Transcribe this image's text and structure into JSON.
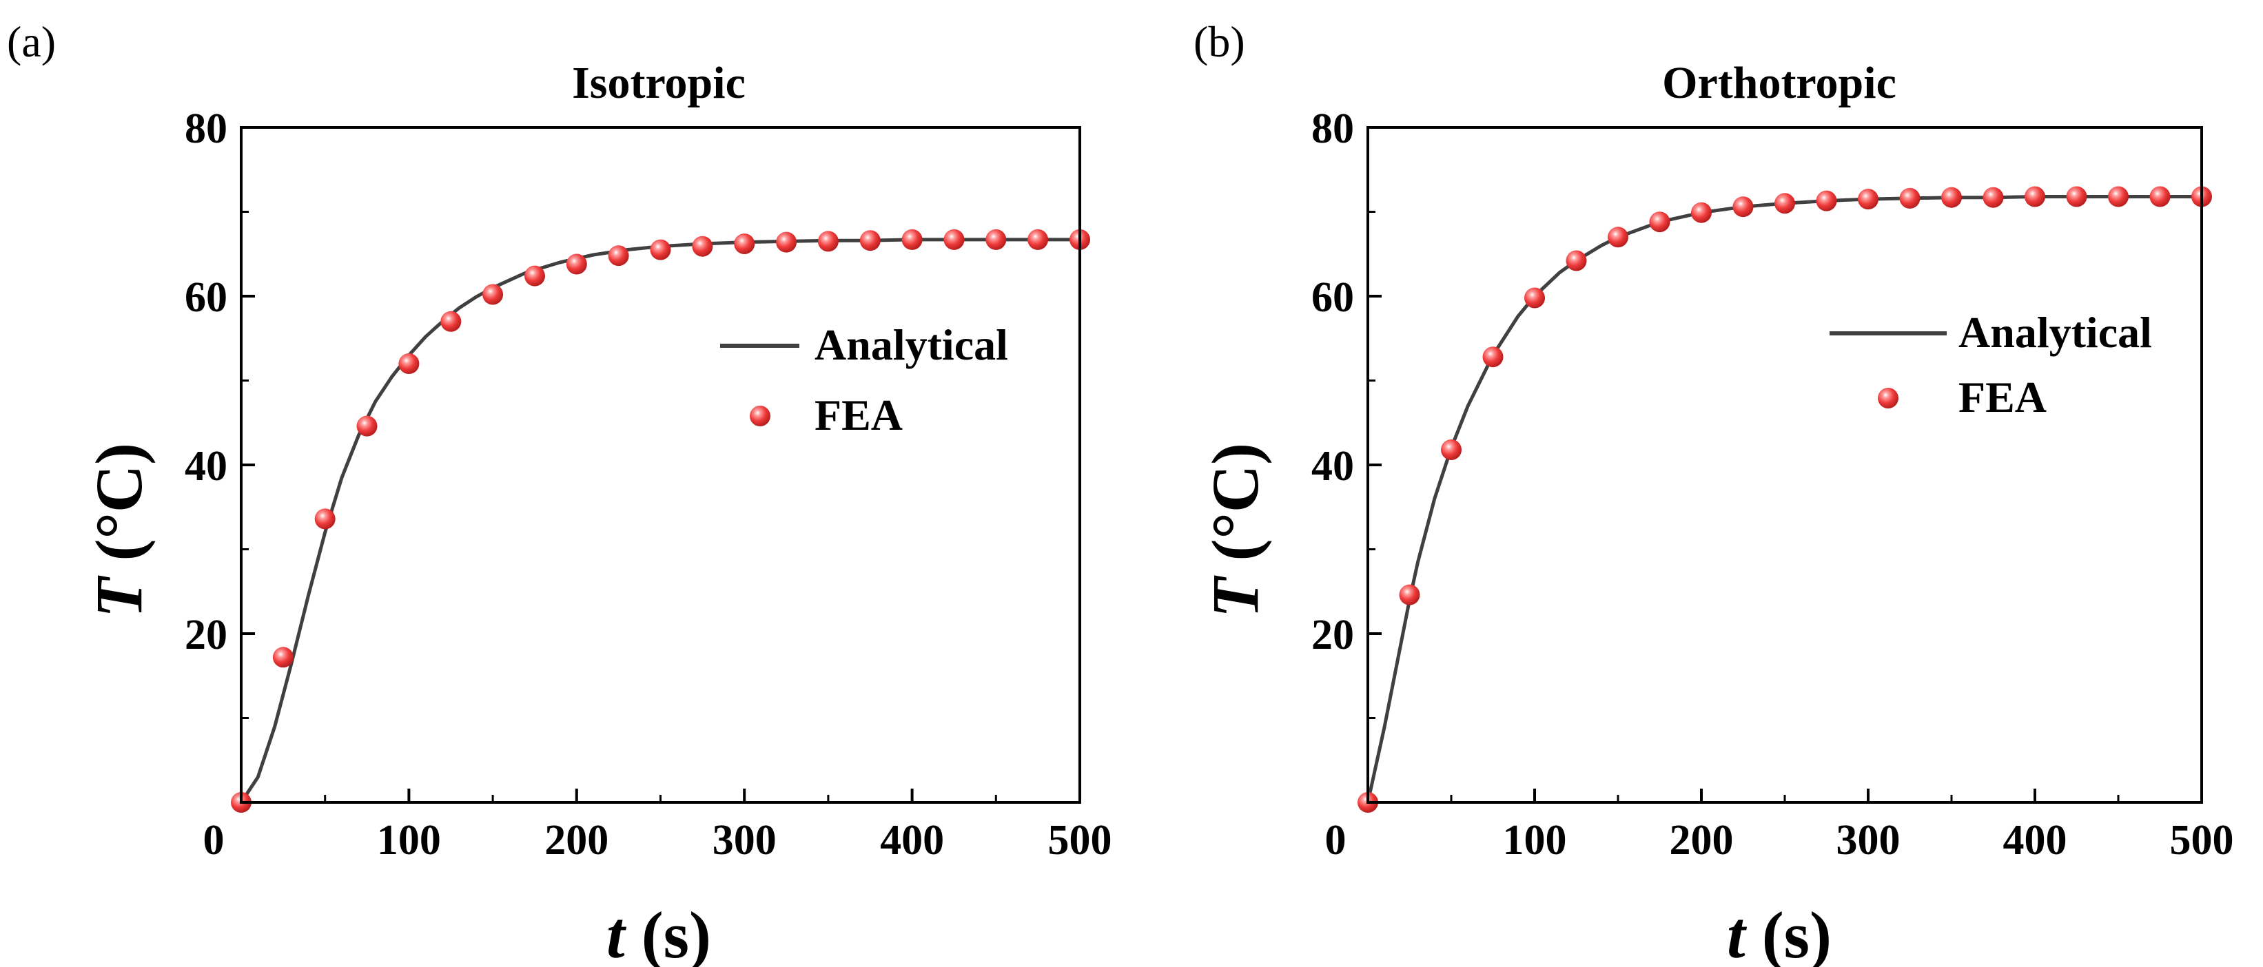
{
  "figure": {
    "panels": [
      {
        "panel_label": "(a)",
        "title": "Isotropic",
        "xlabel_var": "t",
        "xlabel_unit": " (s)",
        "ylabel_var": "T",
        "ylabel_unit": " (°C)",
        "origin_label": "0",
        "legend": {
          "line": "Analytical",
          "marker": "FEA"
        }
      },
      {
        "panel_label": "(b)",
        "title": "Orthotropic",
        "xlabel_var": "t",
        "xlabel_unit": " (s)",
        "ylabel_var": "T",
        "ylabel_unit": " (°C)",
        "origin_label": "0",
        "legend": {
          "line": "Analytical",
          "marker": "FEA"
        }
      }
    ]
  },
  "chart_data": [
    {
      "type": "line",
      "title": "Isotropic",
      "xlabel": "t (s)",
      "ylabel": "T (°C)",
      "xlim": [
        0,
        500
      ],
      "ylim": [
        0,
        80
      ],
      "xticks": [
        0,
        100,
        200,
        300,
        400,
        500
      ],
      "yticks": [
        20,
        40,
        60,
        80
      ],
      "legend_position": "right",
      "series": [
        {
          "name": "Analytical",
          "style": "line",
          "color": "#404040",
          "x": [
            0,
            10,
            20,
            30,
            40,
            50,
            60,
            70,
            80,
            90,
            100,
            110,
            120,
            130,
            140,
            150,
            170,
            190,
            210,
            230,
            250,
            275,
            300,
            325,
            350,
            375,
            400,
            425,
            450,
            475,
            500
          ],
          "y": [
            0,
            3,
            9,
            16.5,
            24.5,
            32,
            38.5,
            43.5,
            47.5,
            50.5,
            53,
            55.2,
            57,
            58.6,
            59.9,
            61,
            62.8,
            64,
            64.9,
            65.5,
            65.9,
            66.2,
            66.4,
            66.5,
            66.6,
            66.6,
            66.7,
            66.7,
            66.7,
            66.7,
            66.7
          ]
        },
        {
          "name": "FEA",
          "style": "marker",
          "color": "#ee3c3c",
          "x": [
            0,
            25,
            50,
            75,
            100,
            125,
            150,
            175,
            200,
            225,
            250,
            275,
            300,
            325,
            350,
            375,
            400,
            425,
            450,
            475,
            500
          ],
          "y": [
            0,
            17.2,
            33.6,
            44.6,
            52,
            57,
            60.2,
            62.4,
            63.8,
            64.8,
            65.5,
            65.9,
            66.2,
            66.4,
            66.5,
            66.6,
            66.7,
            66.7,
            66.7,
            66.7,
            66.7
          ]
        }
      ]
    },
    {
      "type": "line",
      "title": "Orthotropic",
      "xlabel": "t (s)",
      "ylabel": "T (°C)",
      "xlim": [
        0,
        500
      ],
      "ylim": [
        0,
        80
      ],
      "xticks": [
        0,
        100,
        200,
        300,
        400,
        500
      ],
      "yticks": [
        20,
        40,
        60,
        80
      ],
      "legend_position": "right",
      "series": [
        {
          "name": "Analytical",
          "style": "line",
          "color": "#404040",
          "x": [
            0,
            10,
            20,
            25,
            30,
            40,
            50,
            60,
            75,
            90,
            100,
            115,
            125,
            140,
            150,
            175,
            200,
            225,
            250,
            275,
            300,
            325,
            350,
            375,
            400,
            425,
            450,
            475,
            500
          ],
          "y": [
            0,
            9,
            19,
            24,
            28.5,
            36,
            42,
            47,
            53,
            57.6,
            60,
            62.8,
            64.2,
            66,
            67,
            68.8,
            69.9,
            70.6,
            71,
            71.3,
            71.5,
            71.6,
            71.7,
            71.7,
            71.8,
            71.8,
            71.8,
            71.8,
            71.8
          ]
        },
        {
          "name": "FEA",
          "style": "marker",
          "color": "#ee3c3c",
          "x": [
            0,
            25,
            50,
            75,
            100,
            125,
            150,
            175,
            200,
            225,
            250,
            275,
            300,
            325,
            350,
            375,
            400,
            425,
            450,
            475,
            500
          ],
          "y": [
            0,
            24.6,
            41.8,
            52.8,
            59.8,
            64.2,
            67,
            68.8,
            69.9,
            70.6,
            71,
            71.3,
            71.5,
            71.6,
            71.7,
            71.7,
            71.8,
            71.8,
            71.8,
            71.8,
            71.8
          ]
        }
      ]
    }
  ]
}
